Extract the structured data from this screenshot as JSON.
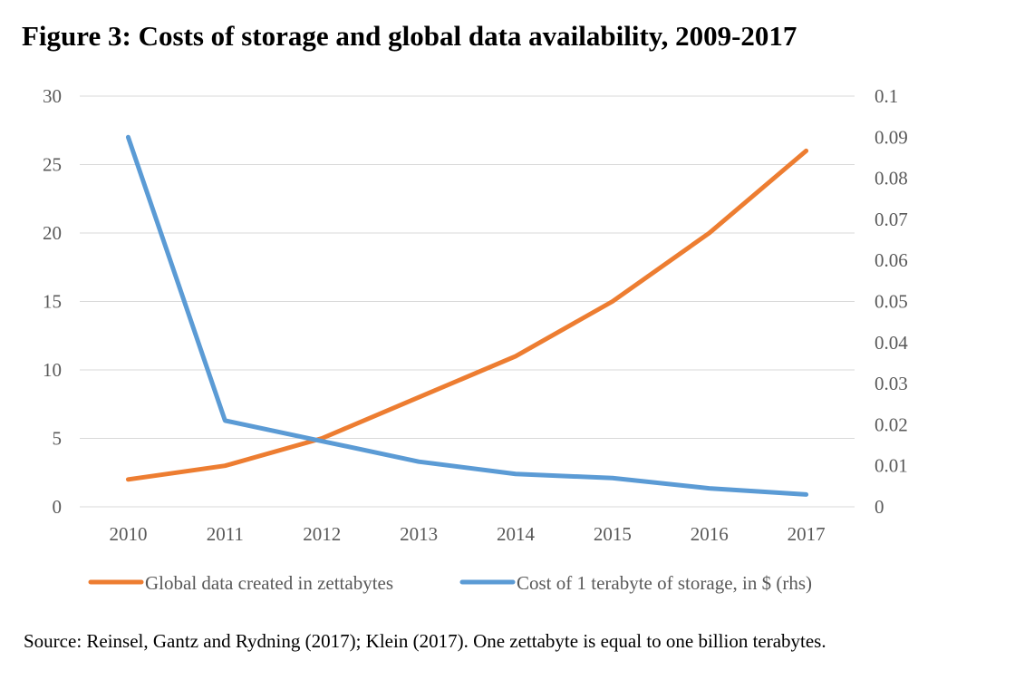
{
  "figure_title": "Figure 3: Costs of storage and global data availability, 2009-2017",
  "source_note": "Source: Reinsel, Gantz and Rydning (2017); Klein (2017). One zettabyte is equal to one billion terabytes.",
  "colors": {
    "orange": "#ED7D31",
    "blue": "#5B9BD5",
    "grid": "#D9D9D9",
    "tick_text": "#595959"
  },
  "chart_data": {
    "type": "line",
    "title": "",
    "xlabel": "",
    "ylabel": "",
    "x": [
      "2010",
      "2011",
      "2012",
      "2013",
      "2014",
      "2015",
      "2016",
      "2017"
    ],
    "ylim_left": [
      0,
      30
    ],
    "yticks_left": [
      "0",
      "5",
      "10",
      "15",
      "20",
      "25",
      "30"
    ],
    "ylim_right": [
      0,
      0.1
    ],
    "yticks_right": [
      "0",
      "0.01",
      "0.02",
      "0.03",
      "0.04",
      "0.05",
      "0.06",
      "0.07",
      "0.08",
      "0.09",
      "0.1"
    ],
    "grid": true,
    "legend_position": "bottom",
    "series": [
      {
        "name": "Global data created in zettabytes",
        "axis": "left",
        "color": "#ED7D31",
        "values": [
          2,
          3,
          5,
          8,
          11,
          15,
          20,
          26
        ]
      },
      {
        "name": "Cost of 1 terabyte of storage, in $ (rhs)",
        "axis": "right",
        "color": "#5B9BD5",
        "values": [
          0.09,
          0.021,
          0.016,
          0.011,
          0.008,
          0.007,
          0.0045,
          0.003
        ]
      }
    ]
  }
}
